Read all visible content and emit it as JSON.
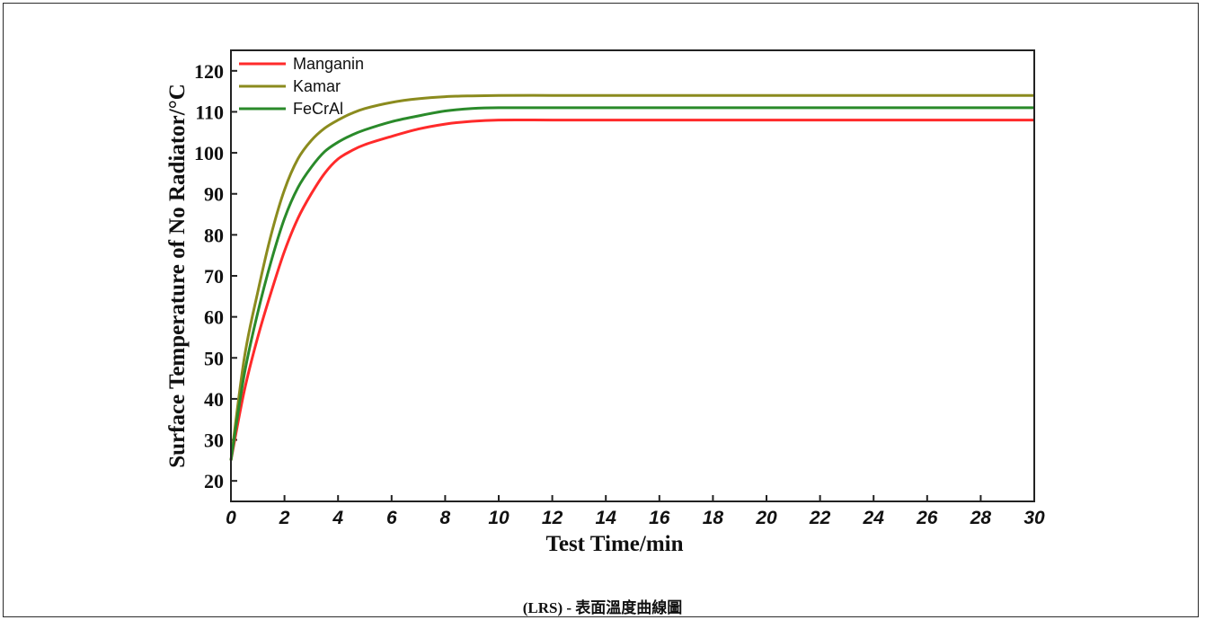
{
  "caption": "(LRS) -  表面溫度曲線圖",
  "chart_data": {
    "type": "line",
    "title": "",
    "xlabel": "Test Time/min",
    "ylabel": "Surface Temperature of No Radiator/°C",
    "xlim": [
      0,
      30
    ],
    "ylim": [
      15,
      125
    ],
    "x_ticks": [
      0,
      2,
      4,
      6,
      8,
      10,
      12,
      14,
      16,
      18,
      20,
      22,
      24,
      26,
      28,
      30
    ],
    "y_ticks": [
      20,
      30,
      40,
      50,
      60,
      70,
      80,
      90,
      100,
      110,
      120
    ],
    "legend_position": "top-left",
    "grid": false,
    "x": [
      0,
      0.5,
      1,
      1.5,
      2,
      2.5,
      3,
      3.5,
      4,
      4.5,
      5,
      6,
      7,
      8,
      9,
      10,
      12,
      14,
      16,
      18,
      20,
      22,
      24,
      26,
      28,
      30
    ],
    "series": [
      {
        "name": "Manganin",
        "color": "#ff2a2a",
        "values": [
          25,
          42,
          55,
          66,
          76,
          84,
          90,
          95,
          98.5,
          100.5,
          102,
          104,
          105.8,
          107,
          107.7,
          108,
          108,
          108,
          108,
          108,
          108,
          108,
          108,
          108,
          108,
          108
        ]
      },
      {
        "name": "Kamar",
        "color": "#8b8b1e",
        "values": [
          25,
          50,
          66,
          80,
          91,
          98.5,
          103,
          106,
          108,
          109.6,
          110.8,
          112.3,
          113.2,
          113.7,
          113.9,
          114,
          114,
          114,
          114,
          114,
          114,
          114,
          114,
          114,
          114,
          114
        ]
      },
      {
        "name": "FeCrAl",
        "color": "#2a8a2a",
        "values": [
          25,
          46,
          61,
          73.5,
          84,
          91.5,
          96.5,
          100.3,
          102.6,
          104.3,
          105.6,
          107.6,
          109,
          110.2,
          110.8,
          111,
          111,
          111,
          111,
          111,
          111,
          111,
          111,
          111,
          111,
          111
        ]
      }
    ]
  }
}
